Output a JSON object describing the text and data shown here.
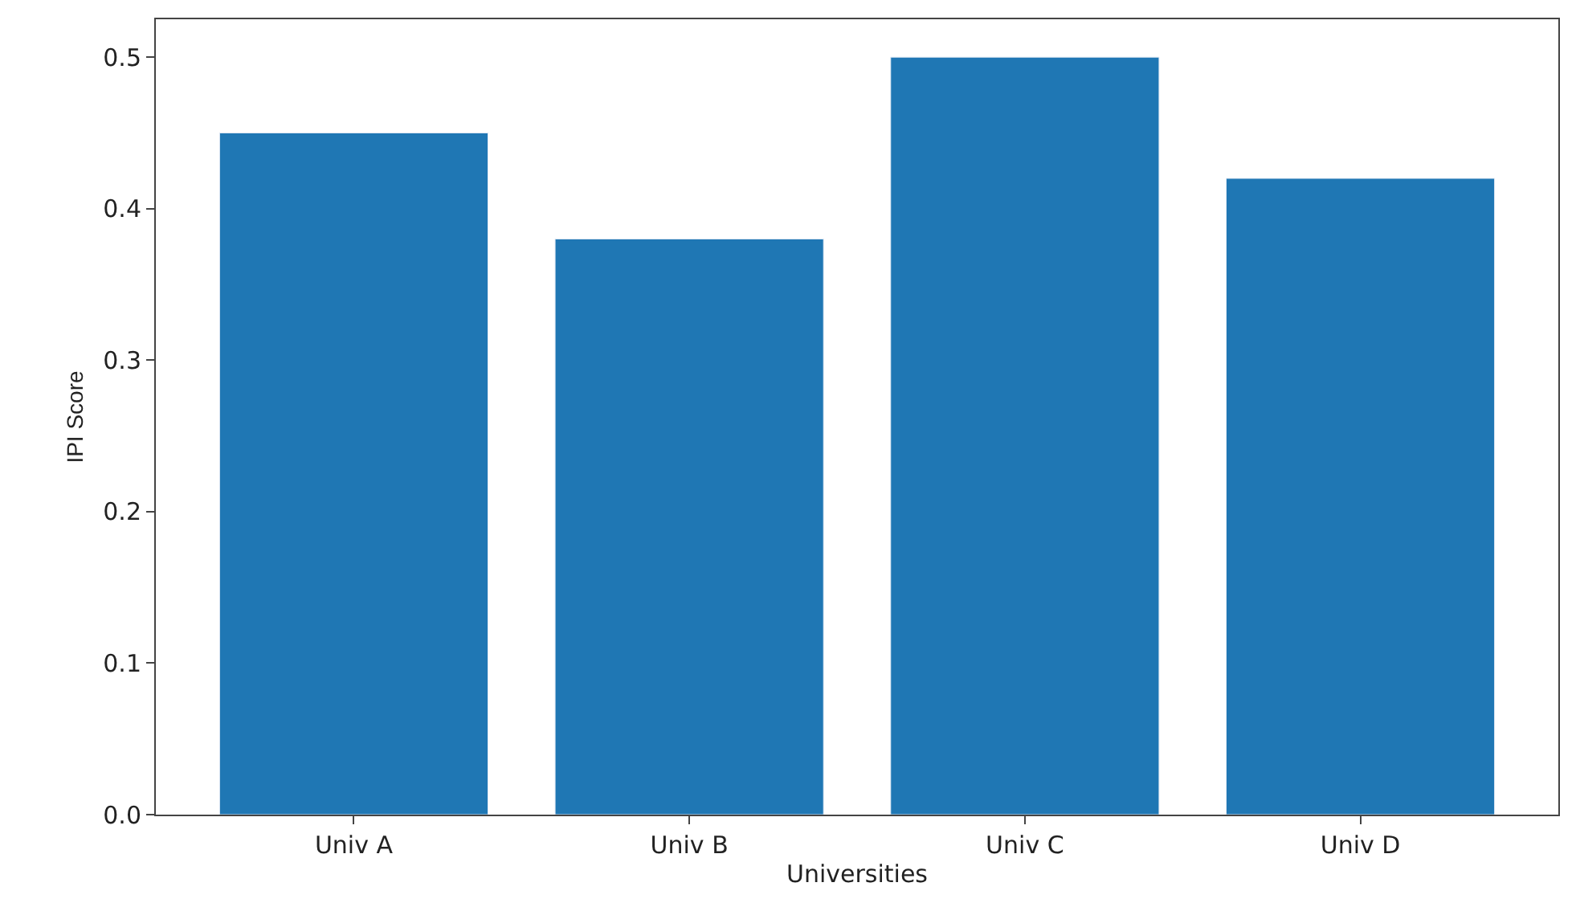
{
  "chart_data": {
    "type": "bar",
    "xlabel": "Universities",
    "ylabel": "IPI Score",
    "categories": [
      "Univ A",
      "Univ B",
      "Univ C",
      "Univ D"
    ],
    "values": [
      0.45,
      0.38,
      0.5,
      0.42
    ],
    "color": "#1f77b4",
    "ylim": [
      0,
      0.525
    ],
    "yticks": [
      {
        "value": 0,
        "label": "0.0"
      },
      0.1,
      0.2,
      0.3,
      0.4,
      0.5
    ]
  }
}
